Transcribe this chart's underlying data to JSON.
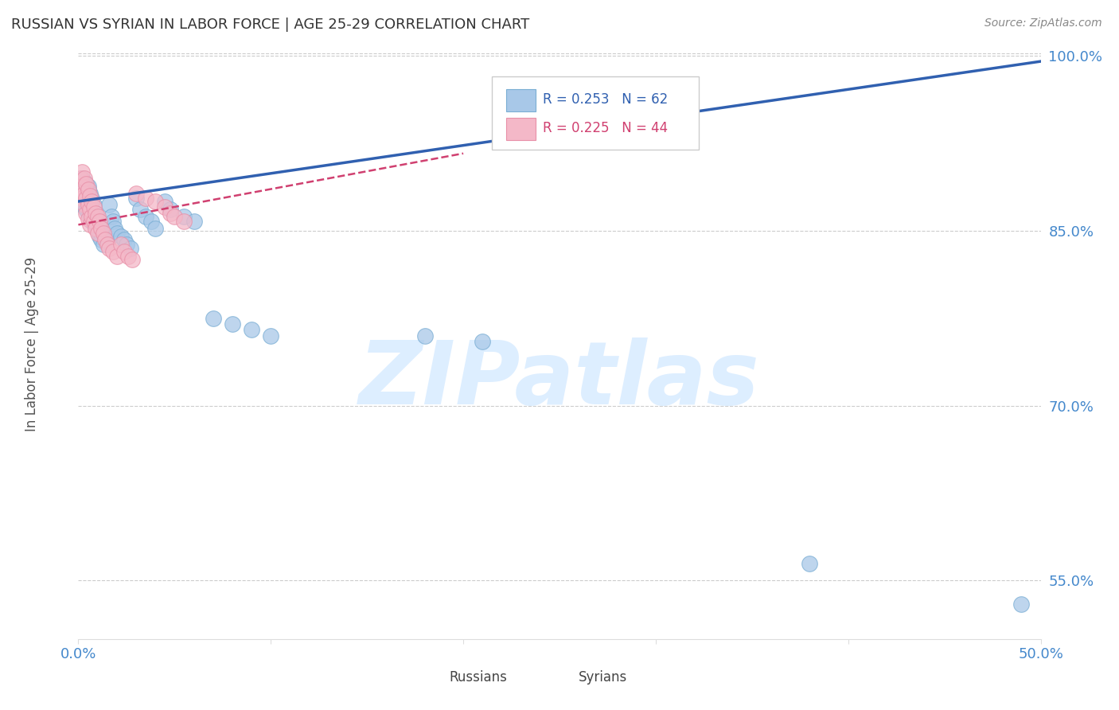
{
  "title": "RUSSIAN VS SYRIAN IN LABOR FORCE | AGE 25-29 CORRELATION CHART",
  "source": "Source: ZipAtlas.com",
  "ylabel_label": "In Labor Force | Age 25-29",
  "xlim": [
    0.0,
    0.5
  ],
  "ylim": [
    0.5,
    1.005
  ],
  "russian_color": "#a8c8e8",
  "russian_edge": "#7aaed4",
  "syrian_color": "#f4b8c8",
  "syrian_edge": "#e890a8",
  "russian_line_color": "#3060b0",
  "syrian_line_color": "#d04070",
  "R_russian": 0.253,
  "N_russian": 62,
  "R_syrian": 0.225,
  "N_syrian": 44,
  "background_color": "#ffffff",
  "grid_color": "#cccccc",
  "title_color": "#333333",
  "tick_color": "#4488cc",
  "watermark_color": "#ddeeff",
  "rus_x": [
    0.001,
    0.001,
    0.002,
    0.002,
    0.002,
    0.003,
    0.003,
    0.003,
    0.003,
    0.004,
    0.004,
    0.004,
    0.005,
    0.005,
    0.005,
    0.005,
    0.006,
    0.006,
    0.006,
    0.007,
    0.007,
    0.007,
    0.008,
    0.008,
    0.009,
    0.009,
    0.01,
    0.01,
    0.011,
    0.011,
    0.012,
    0.012,
    0.013,
    0.013,
    0.014,
    0.015,
    0.016,
    0.017,
    0.018,
    0.019,
    0.02,
    0.022,
    0.024,
    0.025,
    0.027,
    0.03,
    0.032,
    0.035,
    0.038,
    0.04,
    0.045,
    0.048,
    0.055,
    0.06,
    0.07,
    0.08,
    0.09,
    0.1,
    0.18,
    0.21,
    0.38,
    0.49
  ],
  "rus_y": [
    0.888,
    0.878,
    0.895,
    0.885,
    0.875,
    0.892,
    0.882,
    0.878,
    0.87,
    0.89,
    0.878,
    0.868,
    0.885,
    0.875,
    0.865,
    0.888,
    0.882,
    0.872,
    0.862,
    0.878,
    0.868,
    0.858,
    0.872,
    0.862,
    0.865,
    0.855,
    0.86,
    0.85,
    0.855,
    0.845,
    0.852,
    0.842,
    0.848,
    0.838,
    0.845,
    0.84,
    0.872,
    0.862,
    0.858,
    0.852,
    0.848,
    0.845,
    0.842,
    0.838,
    0.835,
    0.878,
    0.868,
    0.862,
    0.858,
    0.852,
    0.875,
    0.868,
    0.862,
    0.858,
    0.775,
    0.77,
    0.765,
    0.76,
    0.76,
    0.755,
    0.565,
    0.53
  ],
  "syr_x": [
    0.001,
    0.001,
    0.002,
    0.002,
    0.002,
    0.003,
    0.003,
    0.003,
    0.004,
    0.004,
    0.004,
    0.005,
    0.005,
    0.005,
    0.006,
    0.006,
    0.006,
    0.007,
    0.007,
    0.008,
    0.008,
    0.009,
    0.009,
    0.01,
    0.01,
    0.011,
    0.012,
    0.013,
    0.014,
    0.015,
    0.016,
    0.018,
    0.02,
    0.022,
    0.024,
    0.026,
    0.028,
    0.03,
    0.035,
    0.04,
    0.045,
    0.048,
    0.05,
    0.055
  ],
  "syr_y": [
    0.895,
    0.882,
    0.9,
    0.888,
    0.878,
    0.895,
    0.882,
    0.872,
    0.89,
    0.878,
    0.865,
    0.885,
    0.872,
    0.86,
    0.88,
    0.868,
    0.855,
    0.875,
    0.862,
    0.87,
    0.858,
    0.865,
    0.852,
    0.862,
    0.848,
    0.858,
    0.852,
    0.848,
    0.842,
    0.838,
    0.835,
    0.832,
    0.828,
    0.838,
    0.832,
    0.828,
    0.825,
    0.882,
    0.878,
    0.875,
    0.87,
    0.865,
    0.862,
    0.858
  ],
  "ytick_positions": [
    0.55,
    0.7,
    0.85,
    1.0
  ],
  "ytick_labels": [
    "55.0%",
    "70.0%",
    "85.0%",
    "100.0%"
  ],
  "xtick_positions": [
    0.0,
    0.1,
    0.2,
    0.3,
    0.4,
    0.5
  ],
  "xtick_labels": [
    "0.0%",
    "",
    "",
    "",
    "",
    "50.0%"
  ]
}
